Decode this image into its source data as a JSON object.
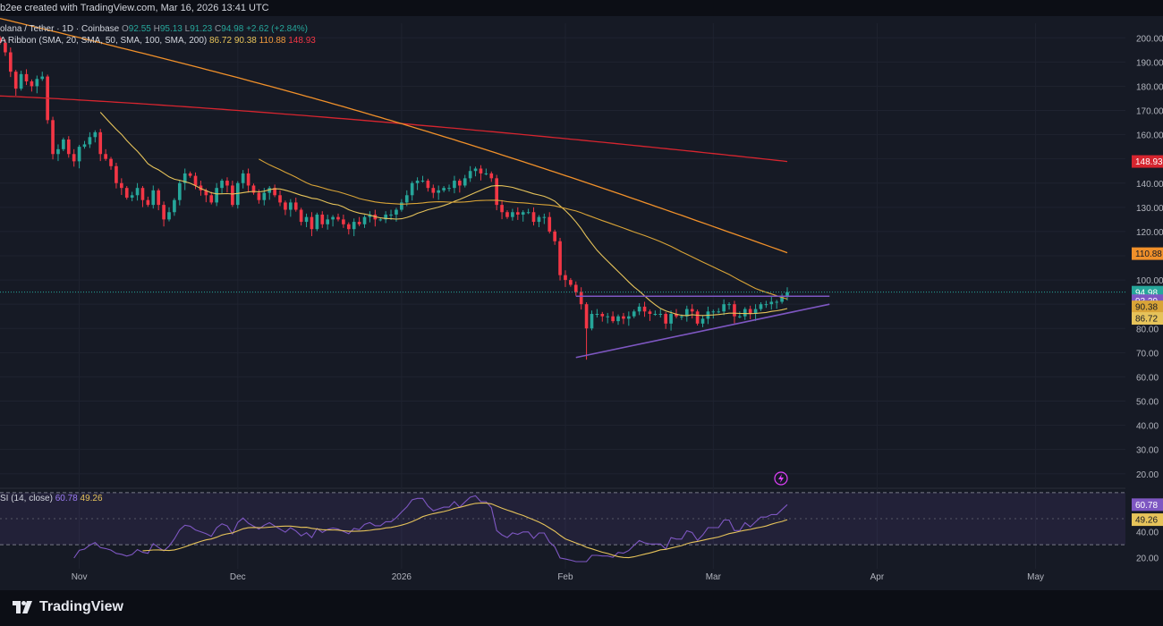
{
  "header": {
    "attribution": "b2ee created with TradingView.com, Mar 16, 2026 13:41 UTC"
  },
  "legend": {
    "symbol": "olana / Tether · 1D · Coinbase",
    "ohlc": {
      "o_label": "O",
      "o": "92.55",
      "h_label": "H",
      "h": "95.13",
      "l_label": "L",
      "l": "91.23",
      "c_label": "C",
      "c": "94.98",
      "change": "+2.62 (+2.84%)"
    },
    "ribbon_label": "A Ribbon (SMA, 20, SMA, 50, SMA, 100, SMA, 200)",
    "ribbon_values": [
      "86.72",
      "90.38",
      "110.88",
      "148.93"
    ],
    "rsi_label": "SI (14, close)",
    "rsi_values": [
      "60.78",
      "49.26"
    ]
  },
  "footer": {
    "brand": "TradingView"
  },
  "colors": {
    "background": "#161a25",
    "up": "#26a69a",
    "down": "#f23645",
    "sma20": "#e6c35a",
    "sma50": "#d9a437",
    "sma100": "#f0902a",
    "sma200": "#d6252f",
    "trendline": "#7e57c2",
    "rsi": "#7e57c2"
  },
  "chart_data": [
    {
      "type": "candlestick",
      "x_axis_labels": [
        "Nov",
        "Dec",
        "2026",
        "Feb",
        "Mar",
        "Apr",
        "May"
      ],
      "y_ticks": [
        20,
        30,
        40,
        50,
        60,
        70,
        80,
        90,
        100,
        110,
        120,
        130,
        140,
        150,
        160,
        170,
        180,
        190,
        200
      ],
      "y_tick_labels": [
        "20.00",
        "30.00",
        "40.00",
        "50.00",
        "60.00",
        "70.00",
        "80.00",
        "90.00",
        "100.00",
        "110.00",
        "120.00",
        "130.00",
        "140.00",
        "150.00",
        "160.00",
        "170.00",
        "180.00",
        "190.00",
        "200.00"
      ],
      "ylim": [
        14,
        206
      ],
      "x_range": [
        "2025-10-17",
        "2026-05-18"
      ],
      "close": [
        198,
        194,
        186,
        179,
        185,
        182,
        180,
        183,
        184,
        166,
        152,
        154,
        158,
        152,
        149,
        155,
        156,
        159,
        161,
        152,
        150,
        147,
        140,
        138,
        134,
        135,
        138,
        133,
        131,
        137,
        131,
        125,
        128,
        133,
        140,
        144,
        143,
        139,
        137,
        135,
        132,
        138,
        141,
        139,
        131,
        140,
        144,
        139,
        136,
        133,
        136,
        138,
        135,
        132,
        129,
        132,
        129,
        124,
        126,
        121,
        127,
        123,
        125,
        126,
        125,
        123,
        121,
        124,
        123,
        126,
        127,
        125,
        125,
        127,
        127,
        129,
        132,
        135,
        140,
        141,
        141,
        138,
        136,
        137,
        138,
        138,
        141,
        139,
        142,
        145,
        146,
        144,
        144,
        142,
        131,
        128,
        126,
        128,
        127,
        128,
        128,
        124,
        126,
        126,
        120,
        116,
        102,
        100,
        98,
        95,
        90,
        80,
        86,
        86,
        85,
        85,
        83,
        85,
        84,
        85,
        87,
        89,
        87,
        86,
        86,
        86,
        82,
        86,
        85,
        85,
        88,
        87,
        82,
        84,
        87,
        87,
        87,
        90,
        90,
        85,
        85,
        88,
        86,
        88,
        90,
        90,
        91,
        91,
        93,
        95
      ],
      "last_close": 94.98,
      "series": [
        {
          "name": "SMA 20",
          "last": 86.72
        },
        {
          "name": "SMA 50",
          "last": 90.38
        },
        {
          "name": "SMA 100",
          "last": 110.88
        },
        {
          "name": "SMA 200",
          "last": 148.93
        }
      ],
      "price_labels": [
        "148.93",
        "110.88",
        "94.98",
        "10:18:08",
        "93.29",
        "90.38",
        "86.72"
      ],
      "horizontal_line": 93.29,
      "trendlines": [
        {
          "from": [
            "2026-02-03",
            93.29
          ],
          "to": [
            "2026-03-23",
            93.29
          ]
        },
        {
          "from": [
            "2026-02-03",
            68
          ],
          "to": [
            "2026-03-23",
            90
          ]
        }
      ]
    },
    {
      "type": "line",
      "title": "SI (14, close)",
      "y_ticks": [
        20,
        40
      ],
      "y_tick_labels": [
        "20.00",
        "40.00"
      ],
      "ylim": [
        17,
        72
      ],
      "bands": [
        30,
        70
      ],
      "series": [
        {
          "name": "RSI",
          "last": 60.78
        },
        {
          "name": "RSI-based MA",
          "last": 49.26
        }
      ],
      "value_labels": [
        "60.78",
        "49.26"
      ]
    }
  ]
}
